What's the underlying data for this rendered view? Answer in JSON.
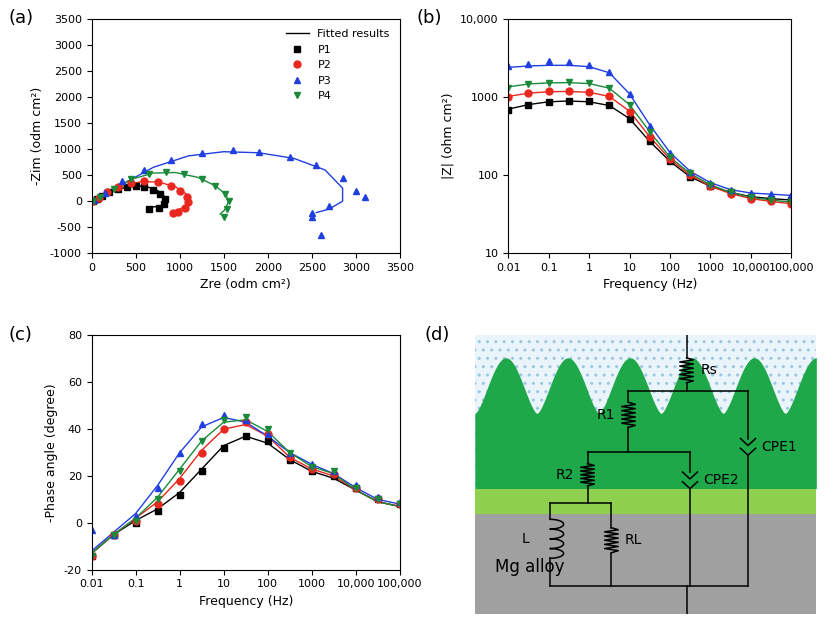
{
  "chart_data": [
    {
      "type": "scatter",
      "title": "(a)",
      "x_label": "Zre (odm cm²)",
      "y_label": "-Zim (odm cm²)",
      "xlim": [
        0,
        3500
      ],
      "xticks": [
        0,
        500,
        1000,
        1500,
        2000,
        2500,
        3000,
        3500
      ],
      "ylim": [
        -1000,
        3500
      ],
      "yticks": [
        -1000,
        -500,
        0,
        500,
        1000,
        1500,
        2000,
        2500,
        3000,
        3500
      ],
      "legend": "upper right",
      "series": [
        {
          "name": "Fitted results",
          "type": "line",
          "color": "#000000",
          "x": [
            0,
            100,
            250,
            400,
            550,
            700,
            800,
            850,
            830,
            780,
            700
          ],
          "values": [
            0,
            80,
            200,
            270,
            290,
            250,
            150,
            30,
            -60,
            -100,
            -110
          ]
        },
        {
          "name": null,
          "type": "line",
          "color": "#e8281e",
          "x": [
            0,
            150,
            350,
            550,
            750,
            950,
            1080,
            1120,
            1080,
            1000
          ],
          "values": [
            0,
            120,
            290,
            370,
            370,
            280,
            130,
            0,
            -100,
            -150
          ]
        },
        {
          "name": null,
          "type": "line",
          "color": "#1f3fe0",
          "x": [
            0,
            300,
            700,
            1100,
            1500,
            1900,
            2300,
            2650,
            2850,
            2850,
            2700,
            2550
          ],
          "values": [
            0,
            280,
            650,
            870,
            950,
            930,
            820,
            600,
            250,
            0,
            -150,
            -220
          ]
        },
        {
          "name": null,
          "type": "line",
          "color": "#1a8a3a",
          "x": [
            0,
            200,
            450,
            700,
            950,
            1200,
            1400,
            1530,
            1550,
            1510,
            1460
          ],
          "values": [
            0,
            190,
            420,
            540,
            550,
            460,
            300,
            120,
            -30,
            -170,
            -250
          ]
        },
        {
          "name": "P1",
          "type": "scatter",
          "color": "#000000",
          "marker": "square",
          "x": [
            20,
            60,
            120,
            200,
            300,
            400,
            500,
            600,
            700,
            780,
            830,
            820,
            760,
            650
          ],
          "values": [
            10,
            40,
            100,
            180,
            240,
            280,
            290,
            270,
            220,
            130,
            40,
            -50,
            -130,
            -150
          ]
        },
        {
          "name": "P2",
          "type": "scatter",
          "color": "#e8281e",
          "marker": "circle",
          "x": [
            20,
            80,
            180,
            300,
            450,
            600,
            750,
            900,
            1000,
            1080,
            1100,
            1060,
            980,
            920
          ],
          "values": [
            10,
            60,
            170,
            270,
            350,
            380,
            360,
            290,
            190,
            80,
            -20,
            -130,
            -210,
            -230
          ]
        },
        {
          "name": "P3",
          "type": "scatter",
          "color": "#1f3fe0",
          "marker": "triangle_up",
          "x": [
            30,
            150,
            350,
            600,
            900,
            1250,
            1600,
            1900,
            2250,
            2550,
            2850,
            3000,
            3100,
            2700,
            2500,
            2600,
            2500
          ],
          "values": [
            20,
            150,
            380,
            600,
            800,
            930,
            980,
            950,
            850,
            700,
            450,
            200,
            80,
            -100,
            -220,
            -650,
            -300
          ]
        },
        {
          "name": "P4",
          "type": "scatter",
          "color": "#1a8a3a",
          "marker": "triangle_down",
          "x": [
            20,
            100,
            250,
            450,
            650,
            850,
            1050,
            1250,
            1400,
            1520,
            1560,
            1540,
            1500
          ],
          "values": [
            10,
            80,
            240,
            420,
            530,
            560,
            520,
            420,
            290,
            140,
            0,
            -150,
            -300
          ]
        }
      ]
    },
    {
      "type": "scatter",
      "title": "(b)",
      "x_label": "Frequency (Hz)",
      "y_label": "|Z| (ohm cm²)",
      "log": true,
      "x": [
        0.01,
        0.0316,
        0.1,
        0.316,
        1,
        3.16,
        10,
        31.6,
        100,
        316,
        1000,
        3162,
        10000,
        31623,
        100000
      ],
      "xlim": [
        0.01,
        100000
      ],
      "xticks": [
        0.01,
        0.1,
        1,
        10,
        100,
        1000,
        {
          "value": 10000,
          "label": "10,000"
        },
        {
          "value": 100000,
          "label": "100,000"
        }
      ],
      "ylim": [
        10,
        10000
      ],
      "yticks": [
        10,
        100,
        1000,
        {
          "value": 10000,
          "label": "10,000"
        }
      ],
      "series": [
        {
          "name": null,
          "type": "line",
          "color": "#000000",
          "values": [
            700,
            800,
            870,
            890,
            870,
            780,
            530,
            270,
            150,
            95,
            72,
            60,
            53,
            50,
            48
          ]
        },
        {
          "name": null,
          "type": "line",
          "color": "#e8281e",
          "values": [
            1020,
            1120,
            1170,
            1180,
            1150,
            1020,
            660,
            310,
            160,
            100,
            72,
            58,
            50,
            46,
            43
          ]
        },
        {
          "name": null,
          "type": "line",
          "color": "#1f3fe0",
          "values": [
            2400,
            2500,
            2550,
            2550,
            2450,
            2050,
            1100,
            440,
            195,
            112,
            80,
            65,
            59,
            57,
            55
          ]
        },
        {
          "name": null,
          "type": "line",
          "color": "#1a8a3a",
          "values": [
            1350,
            1470,
            1520,
            1530,
            1490,
            1300,
            800,
            360,
            170,
            105,
            75,
            60,
            52,
            48,
            45
          ]
        },
        {
          "name": "P1",
          "type": "scatter",
          "color": "#000000",
          "marker": "square",
          "values": [
            680,
            790,
            870,
            900,
            880,
            790,
            520,
            270,
            150,
            95,
            72,
            60,
            53,
            50,
            48
          ]
        },
        {
          "name": "P2",
          "type": "scatter",
          "color": "#e8281e",
          "marker": "circle",
          "values": [
            1000,
            1120,
            1180,
            1190,
            1160,
            1020,
            650,
            310,
            160,
            100,
            72,
            58,
            50,
            46,
            43
          ]
        },
        {
          "name": "P3",
          "type": "scatter",
          "color": "#1f3fe0",
          "marker": "triangle_up",
          "values": [
            2500,
            2650,
            2900,
            2800,
            2600,
            2100,
            1100,
            430,
            190,
            110,
            80,
            65,
            59,
            57,
            55
          ]
        },
        {
          "name": "P4",
          "type": "scatter",
          "color": "#1a8a3a",
          "marker": "triangle_down",
          "values": [
            1300,
            1450,
            1520,
            1540,
            1500,
            1300,
            800,
            360,
            170,
            105,
            75,
            60,
            52,
            48,
            45
          ]
        }
      ]
    },
    {
      "type": "scatter",
      "title": "(c)",
      "x_label": "Frequency (Hz)",
      "y_label": "-Phase angle (degree)",
      "log": "x",
      "x": [
        0.01,
        0.0316,
        0.1,
        0.316,
        1,
        3.16,
        10,
        31.6,
        100,
        316,
        1000,
        3162,
        10000,
        31623,
        100000
      ],
      "xlim": [
        0.01,
        100000
      ],
      "xticks": [
        0.01,
        0.1,
        1,
        10,
        100,
        1000,
        {
          "value": 10000,
          "label": "10,000"
        },
        {
          "value": 100000,
          "label": "100,000"
        }
      ],
      "ylim": [
        -20,
        80
      ],
      "yticks": [
        -20,
        0,
        20,
        40,
        60,
        80
      ],
      "series": [
        {
          "name": null,
          "type": "line",
          "color": "#000000",
          "values": [
            -13,
            -5,
            1,
            6,
            13,
            23,
            33,
            37,
            34,
            27,
            22,
            19,
            14,
            9,
            7
          ]
        },
        {
          "name": null,
          "type": "line",
          "color": "#e8281e",
          "values": [
            -13,
            -5,
            2,
            9,
            19,
            31,
            40,
            42,
            37,
            28,
            23,
            20,
            14,
            9,
            7
          ]
        },
        {
          "name": null,
          "type": "line",
          "color": "#1f3fe0",
          "values": [
            -12,
            -4,
            4,
            16,
            30,
            41,
            45,
            43,
            37,
            30,
            25,
            21,
            15,
            10,
            8
          ]
        },
        {
          "name": null,
          "type": "line",
          "color": "#1a8a3a",
          "values": [
            -13,
            -5,
            2,
            11,
            23,
            35,
            43,
            44,
            39,
            30,
            24,
            21,
            14,
            9,
            7
          ]
        },
        {
          "name": "P1",
          "type": "scatter",
          "color": "#000000",
          "marker": "square",
          "values": [
            -14,
            -5,
            0,
            5,
            12,
            22,
            32,
            37,
            35,
            27,
            22,
            20,
            15,
            10,
            8
          ]
        },
        {
          "name": "P2",
          "type": "scatter",
          "color": "#e8281e",
          "marker": "circle",
          "values": [
            -14,
            -5,
            1,
            8,
            18,
            30,
            40,
            43,
            38,
            28,
            23,
            21,
            15,
            10,
            8
          ]
        },
        {
          "name": "P3",
          "type": "scatter",
          "color": "#1f3fe0",
          "marker": "triangle_up",
          "values": [
            -3,
            -5,
            3,
            15,
            30,
            42,
            46,
            44,
            38,
            30,
            25,
            22,
            16,
            11,
            9
          ]
        },
        {
          "name": "P4",
          "type": "scatter",
          "color": "#1a8a3a",
          "marker": "triangle_down",
          "values": [
            -14,
            -5,
            1,
            10,
            22,
            35,
            44,
            45,
            40,
            30,
            24,
            22,
            15,
            10,
            8
          ]
        }
      ]
    }
  ],
  "diagram": {
    "title": "(d)",
    "labels": {
      "solution": "Rs",
      "outer_resistor": "R1",
      "outer_cpe": "CPE1",
      "inner_resistor": "R2",
      "inner_cpe": "CPE2",
      "inductor": "L",
      "inductive_resistor": "RL",
      "substrate": "Mg alloy"
    }
  }
}
